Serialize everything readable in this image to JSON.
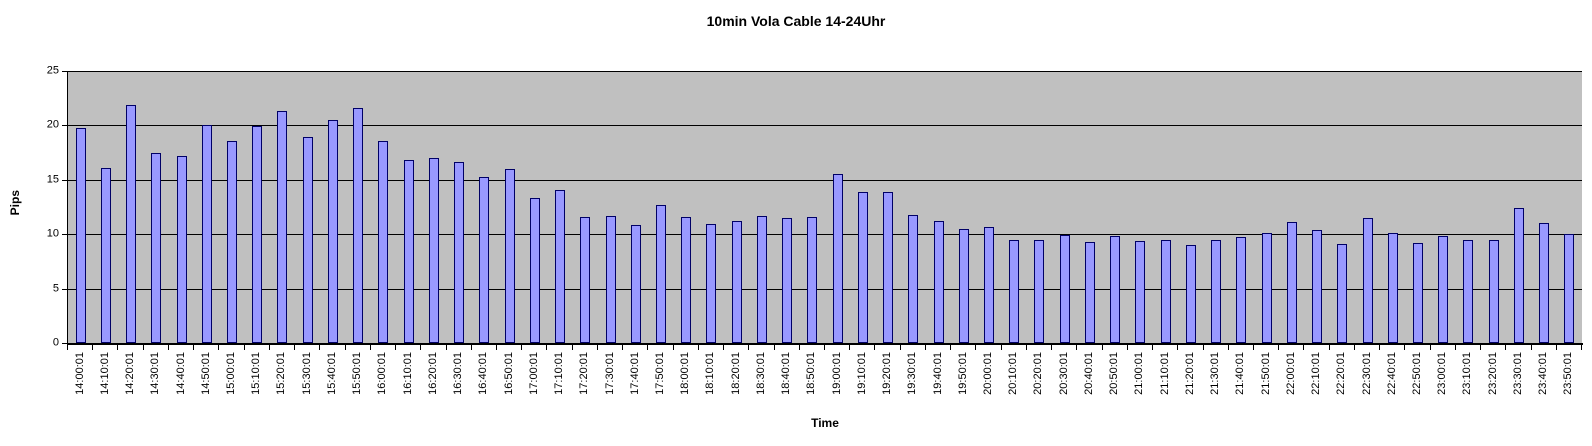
{
  "title": "10min Vola Cable 14-24Uhr",
  "chart_data": {
    "type": "bar",
    "title": "10min Vola Cable 14-24Uhr",
    "xlabel": "Time",
    "ylabel": "Pips",
    "ylim": [
      0,
      25
    ],
    "y_ticks": [
      0,
      5,
      10,
      15,
      20,
      25
    ],
    "grid": true,
    "legend": false,
    "plot_bg_color": "#c0c0c0",
    "bar_fill_color": "#9999ff",
    "bar_border_color": "#000066",
    "categories": [
      "14:00:01",
      "14:10:01",
      "14:20:01",
      "14:30:01",
      "14:40:01",
      "14:50:01",
      "15:00:01",
      "15:10:01",
      "15:20:01",
      "15:30:01",
      "15:40:01",
      "15:50:01",
      "16:00:01",
      "16:10:01",
      "16:20:01",
      "16:30:01",
      "16:40:01",
      "16:50:01",
      "17:00:01",
      "17:10:01",
      "17:20:01",
      "17:30:01",
      "17:40:01",
      "17:50:01",
      "18:00:01",
      "18:10:01",
      "18:20:01",
      "18:30:01",
      "18:40:01",
      "18:50:01",
      "19:00:01",
      "19:10:01",
      "19:20:01",
      "19:30:01",
      "19:40:01",
      "19:50:01",
      "20:00:01",
      "20:10:01",
      "20:20:01",
      "20:30:01",
      "20:40:01",
      "20:50:01",
      "21:00:01",
      "21:10:01",
      "21:20:01",
      "21:30:01",
      "21:40:01",
      "21:50:01",
      "22:00:01",
      "22:10:01",
      "22:20:01",
      "22:30:01",
      "22:40:01",
      "22:50:01",
      "23:00:01",
      "23:10:01",
      "23:20:01",
      "23:30:01",
      "23:40:01",
      "23:50:01"
    ],
    "values": [
      19.8,
      16.1,
      21.9,
      17.5,
      17.2,
      20.0,
      18.6,
      19.9,
      21.3,
      18.9,
      20.5,
      21.6,
      18.6,
      16.8,
      17.0,
      16.6,
      15.3,
      16.0,
      13.3,
      14.1,
      11.6,
      11.7,
      10.8,
      12.7,
      11.6,
      10.9,
      11.2,
      11.7,
      11.5,
      11.6,
      15.5,
      13.9,
      13.9,
      11.8,
      11.2,
      10.5,
      10.7,
      9.5,
      9.5,
      9.9,
      9.3,
      9.8,
      9.4,
      9.5,
      9.0,
      9.5,
      9.7,
      10.1,
      11.1,
      10.4,
      9.1,
      11.5,
      10.1,
      9.2,
      9.8,
      9.5,
      9.5,
      12.4,
      11.0,
      10.0
    ]
  }
}
